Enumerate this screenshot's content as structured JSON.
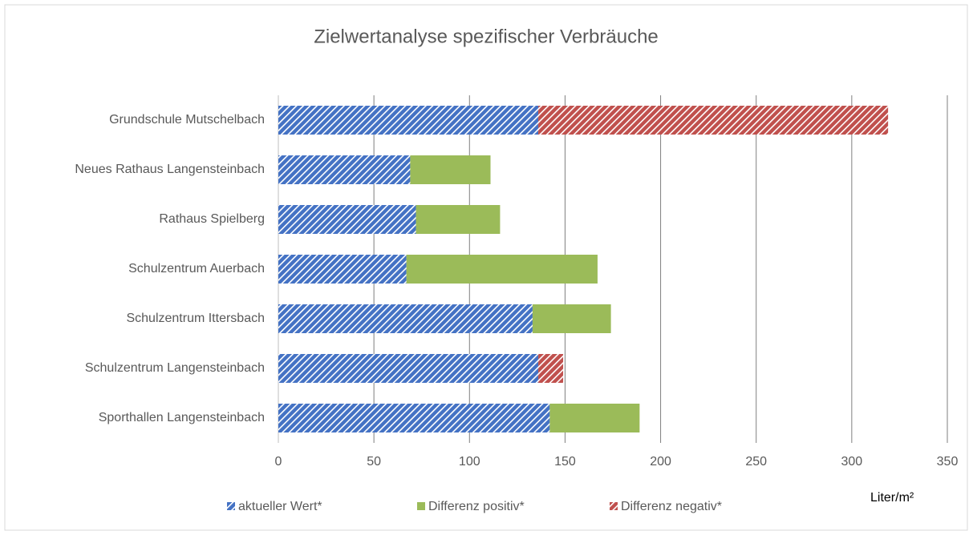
{
  "chart_data": {
    "type": "stacked_barh",
    "title": "Zielwertanalyse spezifischer Verbräuche",
    "xlabel": "Liter/m²",
    "categories": [
      "Grundschule Mutschelbach",
      "Neues Rathaus Langensteinbach",
      "Rathaus Spielberg",
      "Schulzentrum Auerbach",
      "Schulzentrum Ittersbach",
      "Schulzentrum Langensteinbach",
      "Sporthallen Langensteinbach"
    ],
    "series": [
      {
        "name": "aktueller Wert*",
        "color": "#4472c4",
        "hatch": true,
        "values": [
          136,
          69,
          72,
          67,
          133,
          136,
          142
        ]
      },
      {
        "name": "Differenz positiv*",
        "color": "#9bbb59",
        "hatch": false,
        "values": [
          null,
          42,
          44,
          100,
          41,
          null,
          47
        ]
      },
      {
        "name": "Differenz negativ*",
        "color": "#c0504d",
        "hatch": true,
        "values": [
          183,
          null,
          null,
          null,
          null,
          13,
          null
        ]
      }
    ],
    "xlim": [
      0,
      350
    ],
    "xticks": [
      0,
      50,
      100,
      150,
      200,
      250,
      300,
      350
    ],
    "grid": true,
    "legend": "bottom"
  }
}
